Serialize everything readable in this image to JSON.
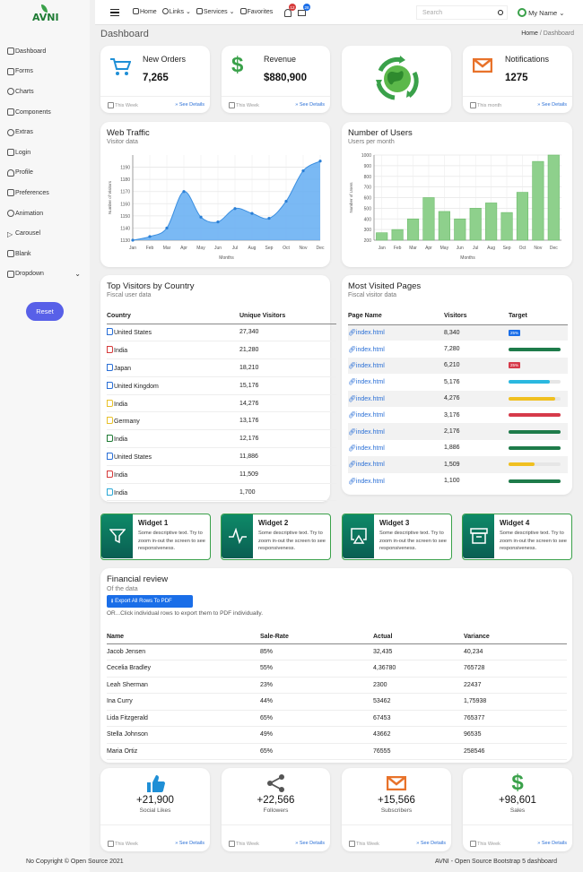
{
  "brand": {
    "name": "AVNI"
  },
  "sidebar": {
    "items": [
      {
        "label": "Dashboard"
      },
      {
        "label": "Forms"
      },
      {
        "label": "Charts"
      },
      {
        "label": "Components"
      },
      {
        "label": "Extras"
      },
      {
        "label": "Login"
      },
      {
        "label": "Profile"
      },
      {
        "label": "Preferences"
      },
      {
        "label": "Animation"
      },
      {
        "label": "Carousel"
      },
      {
        "label": "Blank"
      },
      {
        "label": "Dropdown"
      }
    ],
    "reset_label": "Reset"
  },
  "topbar": {
    "links": [
      {
        "label": "Home"
      },
      {
        "label": "Links"
      },
      {
        "label": "Services"
      },
      {
        "label": "Favorites"
      }
    ],
    "bell_badge": "12",
    "mail_badge": "28",
    "search_placeholder": "Search",
    "user_label": "My Name"
  },
  "page": {
    "title": "Dashboard",
    "breadcrumb_home": "Home",
    "breadcrumb_current": "Dashboard"
  },
  "stats": [
    {
      "label": "New Orders",
      "value": "7,265",
      "period": "This Week",
      "details": "See Details",
      "icon": "cart-icon",
      "color": "#1f8fd6"
    },
    {
      "label": "Revenue",
      "value": "$880,900",
      "period": "This Week",
      "details": "See Details",
      "icon": "dollar-icon",
      "color": "#3aa14a"
    },
    {
      "label": "",
      "value": "",
      "period": "",
      "details": "",
      "icon": "globe-recycle-icon",
      "color": "#3aa14a"
    },
    {
      "label": "Notifications",
      "value": "1275",
      "period": "This month",
      "details": "See Details",
      "icon": "envelope-icon",
      "color": "#e8722a"
    }
  ],
  "traffic": {
    "title": "Web Traffic",
    "subtitle": "Visitor data"
  },
  "users": {
    "title": "Number of Users",
    "subtitle": "Users per month"
  },
  "chart_data": [
    {
      "type": "area",
      "title": "Web Traffic",
      "xlabel": "Months",
      "ylabel": "Number of Visitors",
      "categories": [
        "Jan",
        "Feb",
        "Mar",
        "Apr",
        "May",
        "Jun",
        "Jul",
        "Aug",
        "Sep",
        "Oct",
        "Nov",
        "Dec"
      ],
      "values": [
        1130,
        1133,
        1140,
        1170,
        1149,
        1145,
        1156,
        1152,
        1148,
        1162,
        1187,
        1195
      ],
      "ylim": [
        1130,
        1200
      ],
      "yticks": [
        1130,
        1140,
        1150,
        1160,
        1170,
        1180,
        1190
      ],
      "color": "#63adf2",
      "grid": true
    },
    {
      "type": "bar",
      "title": "Number of Users",
      "xlabel": "Months",
      "ylabel": "Number of Users",
      "categories": [
        "Jan",
        "Feb",
        "Mar",
        "Apr",
        "May",
        "Jun",
        "Jul",
        "Aug",
        "Sep",
        "Oct",
        "Nov",
        "Dec"
      ],
      "values": [
        270,
        300,
        400,
        600,
        470,
        400,
        500,
        550,
        460,
        650,
        940,
        1000
      ],
      "ylim": [
        200,
        1000
      ],
      "yticks": [
        200,
        300,
        400,
        500,
        600,
        700,
        800,
        900,
        1000
      ],
      "color": "#8ed08c",
      "grid": true
    }
  ],
  "top_visitors": {
    "title": "Top Visitors by Country",
    "subtitle": "Fiscal user data",
    "headers": [
      "Country",
      "Unique Visitors"
    ],
    "rows": [
      {
        "country": "United States",
        "visitors": "27,340",
        "flag": "#2a6fd6"
      },
      {
        "country": "India",
        "visitors": "21,280",
        "flag": "#d63a3a"
      },
      {
        "country": "Japan",
        "visitors": "18,210",
        "flag": "#2a6fd6"
      },
      {
        "country": "United Kingdom",
        "visitors": "15,176",
        "flag": "#2a6fd6"
      },
      {
        "country": "India",
        "visitors": "14,276",
        "flag": "#e8c12a"
      },
      {
        "country": "Germany",
        "visitors": "13,176",
        "flag": "#e8c12a"
      },
      {
        "country": "India",
        "visitors": "12,176",
        "flag": "#1e7b34"
      },
      {
        "country": "United States",
        "visitors": "11,886",
        "flag": "#2a6fd6"
      },
      {
        "country": "India",
        "visitors": "11,509",
        "flag": "#d63a3a"
      },
      {
        "country": "India",
        "visitors": "1,700",
        "flag": "#2aa8d6"
      }
    ]
  },
  "most_visited": {
    "title": "Most Visited Pages",
    "subtitle": "Fiscal visitor data",
    "headers": [
      "Page Name",
      "Visitors",
      "Target"
    ],
    "rows": [
      {
        "page": "index.html",
        "visitors": "8,340",
        "target": 0.25,
        "color": "#1a6ee8",
        "pct": "25%"
      },
      {
        "page": "index.html",
        "visitors": "7,280",
        "target": 1.0,
        "color": "#1e7b4a",
        "pct": ""
      },
      {
        "page": "index.html",
        "visitors": "6,210",
        "target": 0.25,
        "color": "#d63a4a",
        "pct": "25%"
      },
      {
        "page": "index.html",
        "visitors": "5,176",
        "target": 0.8,
        "color": "#2ab8e0",
        "pct": ""
      },
      {
        "page": "index.html",
        "visitors": "4,276",
        "target": 0.9,
        "color": "#f0c020",
        "pct": ""
      },
      {
        "page": "index.html",
        "visitors": "3,176",
        "target": 1.0,
        "color": "#d63a4a",
        "pct": ""
      },
      {
        "page": "index.html",
        "visitors": "2,176",
        "target": 1.0,
        "color": "#1e7b4a",
        "pct": ""
      },
      {
        "page": "index.html",
        "visitors": "1,886",
        "target": 1.0,
        "color": "#1e7b4a",
        "pct": ""
      },
      {
        "page": "index.html",
        "visitors": "1,509",
        "target": 0.5,
        "color": "#f0c020",
        "pct": ""
      },
      {
        "page": "index.html",
        "visitors": "1,100",
        "target": 1.0,
        "color": "#1e7b4a",
        "pct": ""
      }
    ]
  },
  "widgets": [
    {
      "title": "Widget 1",
      "desc": "Some descriptive text. Try to zoom in-out the screen to see responsiveness.",
      "icon": "filter-icon"
    },
    {
      "title": "Widget 2",
      "desc": "Some descriptive text. Try to zoom in-out the screen to see responsiveness.",
      "icon": "pulse-icon"
    },
    {
      "title": "Widget 3",
      "desc": "Some descriptive text. Try to zoom in-out the screen to see responsiveness.",
      "icon": "cast-icon"
    },
    {
      "title": "Widget 4",
      "desc": "Some descriptive text. Try to zoom in-out the screen to see responsiveness.",
      "icon": "archive-icon"
    }
  ],
  "financial": {
    "title": "Financial review",
    "subtitle": "Of the data",
    "export_label": "Export All Rows To PDF",
    "hint": "OR...Click individual rows to export them to PDF individually.",
    "headers": [
      "Name",
      "Sale-Rate",
      "Actual",
      "Variance"
    ],
    "rows": [
      [
        "Jacob Jensen",
        "85%",
        "32,435",
        "40,234"
      ],
      [
        "Cecelia Bradley",
        "55%",
        "4,36780",
        "765728"
      ],
      [
        "Leah Sherman",
        "23%",
        "2300",
        "22437"
      ],
      [
        "Ina Curry",
        "44%",
        "53462",
        "1,75938"
      ],
      [
        "Lida Fitzgerald",
        "65%",
        "67453",
        "765377"
      ],
      [
        "Stella Johnson",
        "49%",
        "43662",
        "96535"
      ],
      [
        "Maria Ortiz",
        "65%",
        "76555",
        "258546"
      ]
    ]
  },
  "social": [
    {
      "value": "+21,900",
      "label": "Social Likes",
      "period": "This Week",
      "details": "See Details",
      "icon": "thumbs-up-icon",
      "color": "#1f8fd6"
    },
    {
      "value": "+22,566",
      "label": "Followers",
      "period": "This Week",
      "details": "See Details",
      "icon": "share-icon",
      "color": "#555"
    },
    {
      "value": "+15,566",
      "label": "Subscribers",
      "period": "This Week",
      "details": "See Details",
      "icon": "envelope-icon",
      "color": "#e8722a"
    },
    {
      "value": "+98,601",
      "label": "Sales",
      "period": "This Week",
      "details": "See Details",
      "icon": "dollar-icon",
      "color": "#3aa14a"
    }
  ],
  "footer": {
    "left": "No Copyright © Open Source 2021",
    "right": "AVNI - Open Source Bootstrap 5 dashboard"
  }
}
